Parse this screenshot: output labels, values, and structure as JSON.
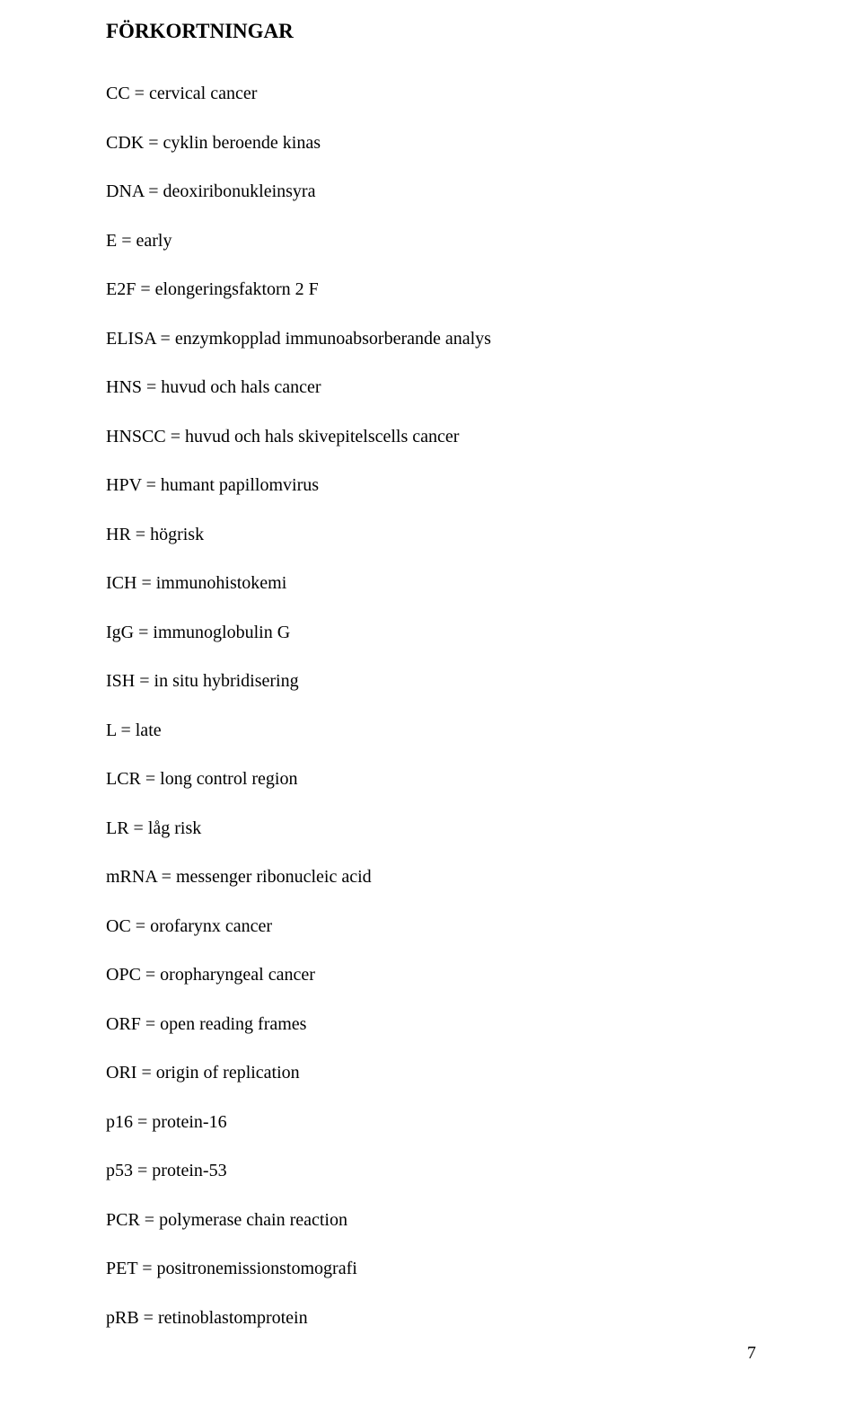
{
  "title": "FÖRKORTNINGAR",
  "entries": [
    "CC = cervical cancer",
    "CDK = cyklin beroende kinas",
    "DNA = deoxiribonukleinsyra",
    "E = early",
    "E2F = elongeringsfaktorn 2 F",
    "ELISA = enzymkopplad immunoabsorberande analys",
    "HNS = huvud och hals cancer",
    "HNSCC = huvud och hals skivepitelscells cancer",
    "HPV = humant papillomvirus",
    "HR = högrisk",
    "ICH = immunohistokemi",
    "IgG = immunoglobulin G",
    "ISH = in situ hybridisering",
    "L = late",
    "LCR = long control region",
    "LR = låg risk",
    "mRNA = messenger ribonucleic acid",
    "OC = orofarynx cancer",
    "OPC = oropharyngeal cancer",
    "ORF = open reading frames",
    "ORI = origin of replication",
    "p16 = protein-16",
    "p53 = protein-53",
    "PCR = polymerase chain reaction",
    "PET = positronemissionstomografi",
    "pRB = retinoblastomprotein"
  ],
  "page_number": "7"
}
